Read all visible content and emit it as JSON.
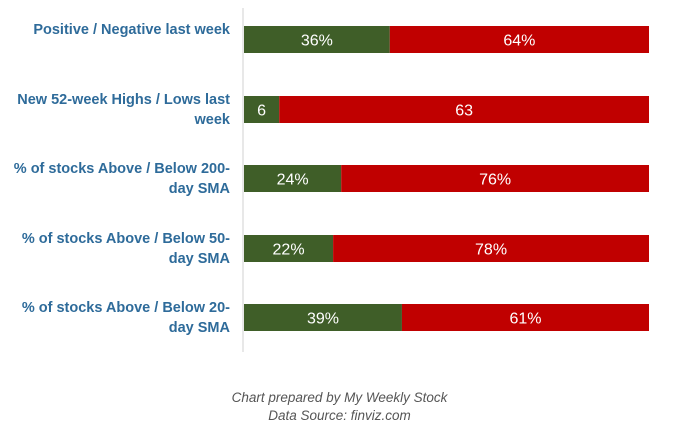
{
  "chart_data": {
    "type": "bar",
    "stacked": true,
    "orientation": "horizontal",
    "categories": [
      "Positive / Negative last week",
      "New 52-week Highs / Lows last week",
      "% of stocks Above / Below 200-day SMA",
      "% of stocks Above / Below 50-day SMA",
      "% of stocks Above / Below 20-day SMA"
    ],
    "series": [
      {
        "values": [
          36,
          6,
          24,
          22,
          39
        ],
        "labels": [
          "36%",
          "6",
          "24%",
          "22%",
          "39%"
        ],
        "color": "#3f5e28"
      },
      {
        "values": [
          64,
          63,
          76,
          78,
          61
        ],
        "labels": [
          "64%",
          "63",
          "76%",
          "78%",
          "61%"
        ],
        "color": "#c00000"
      }
    ],
    "title": "",
    "xlabel": "",
    "ylabel": "",
    "grid": false,
    "legend": "none"
  },
  "footer": {
    "line1": "Chart prepared by My Weekly Stock",
    "line2": "Data Source: finviz.com"
  },
  "colors": {
    "label_text": "#2e6b9a",
    "axis": "#d0d0d0",
    "footer_text": "#555555"
  }
}
